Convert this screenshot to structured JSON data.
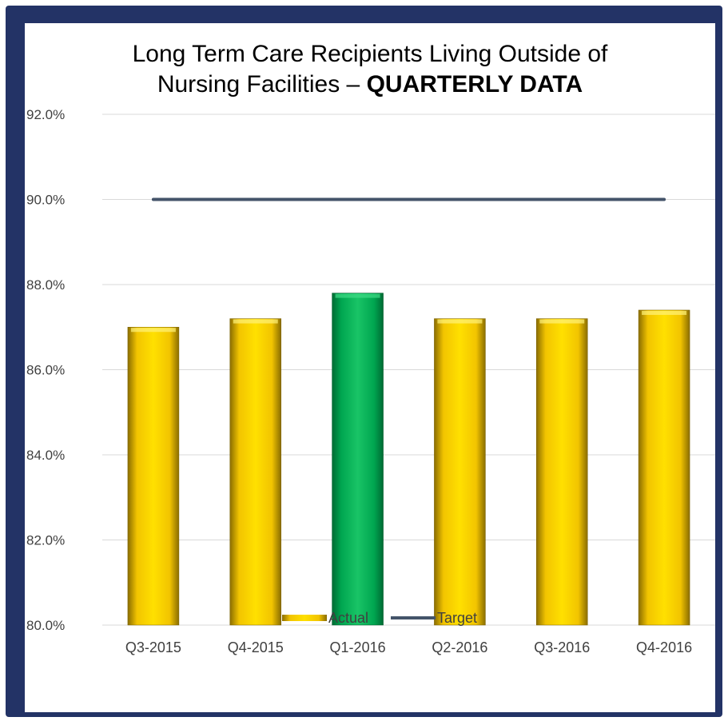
{
  "title_line1": "Long Term Care Recipients Living Outside of",
  "title_line2_prefix": "Nursing Facilities – ",
  "title_line2_bold": "QUARTERLY DATA",
  "colors": {
    "frame": "#233366",
    "actual_bar": "#f5c800",
    "highlight_bar": "#00a650",
    "target_line": "#44546a",
    "grid": "#d9d9d9"
  },
  "chart_data": {
    "type": "bar",
    "categories": [
      "Q3-2015",
      "Q4-2015",
      "Q1-2016",
      "Q2-2016",
      "Q3-2016",
      "Q4-2016"
    ],
    "series": [
      {
        "name": "Actual",
        "type": "bar",
        "values": [
          87.0,
          87.2,
          87.8,
          87.2,
          87.2,
          87.4
        ]
      },
      {
        "name": "Target",
        "type": "line",
        "values": [
          90.0,
          90.0,
          90.0,
          90.0,
          90.0,
          90.0
        ]
      }
    ],
    "highlight_index": 2,
    "ylim": [
      80.0,
      92.0
    ],
    "yticks": [
      "80.0%",
      "82.0%",
      "84.0%",
      "86.0%",
      "88.0%",
      "90.0%",
      "92.0%"
    ],
    "grid": true,
    "legend": "bottom",
    "legend_labels": [
      "Actual",
      "Target"
    ]
  }
}
